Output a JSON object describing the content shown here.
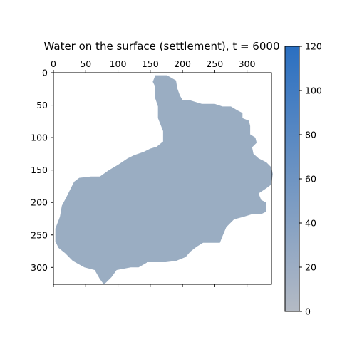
{
  "chart_data": {
    "type": "heatmap",
    "title": "Water on the surface (settlement), t = 6000",
    "xlabel": "",
    "ylabel": "",
    "x_axis_position": "top",
    "y_inverted": true,
    "xlim": [
      0,
      338
    ],
    "ylim": [
      0,
      326
    ],
    "x_ticks": [
      0,
      50,
      100,
      150,
      200,
      250,
      300
    ],
    "y_ticks": [
      0,
      50,
      100,
      150,
      200,
      250,
      300
    ],
    "bottom_ticks_unlabeled": [
      0,
      50,
      100,
      150,
      200,
      250,
      300
    ],
    "grid": false,
    "mask_fill_color": "#9aadc2",
    "background_color": "#ffffff",
    "displayed_region_value": 30,
    "region_outline": [
      [
        158,
        4
      ],
      [
        176,
        4
      ],
      [
        190,
        12
      ],
      [
        192,
        24
      ],
      [
        196,
        35
      ],
      [
        200,
        42
      ],
      [
        210,
        42
      ],
      [
        230,
        48
      ],
      [
        250,
        48
      ],
      [
        262,
        52
      ],
      [
        275,
        52
      ],
      [
        285,
        58
      ],
      [
        293,
        62
      ],
      [
        293,
        70
      ],
      [
        303,
        74
      ],
      [
        305,
        82
      ],
      [
        305,
        95
      ],
      [
        313,
        100
      ],
      [
        315,
        108
      ],
      [
        308,
        115
      ],
      [
        310,
        125
      ],
      [
        318,
        132
      ],
      [
        330,
        138
      ],
      [
        338,
        146
      ],
      [
        340,
        156
      ],
      [
        338,
        172
      ],
      [
        330,
        178
      ],
      [
        318,
        186
      ],
      [
        322,
        196
      ],
      [
        330,
        200
      ],
      [
        330,
        214
      ],
      [
        322,
        218
      ],
      [
        308,
        218
      ],
      [
        295,
        222
      ],
      [
        280,
        226
      ],
      [
        268,
        238
      ],
      [
        262,
        252
      ],
      [
        258,
        262
      ],
      [
        250,
        262
      ],
      [
        232,
        262
      ],
      [
        222,
        268
      ],
      [
        212,
        276
      ],
      [
        205,
        284
      ],
      [
        190,
        290
      ],
      [
        174,
        292
      ],
      [
        160,
        292
      ],
      [
        146,
        292
      ],
      [
        132,
        300
      ],
      [
        120,
        300
      ],
      [
        98,
        304
      ],
      [
        90,
        315
      ],
      [
        82,
        323
      ],
      [
        78,
        326
      ],
      [
        72,
        318
      ],
      [
        64,
        304
      ],
      [
        48,
        300
      ],
      [
        30,
        290
      ],
      [
        18,
        278
      ],
      [
        8,
        270
      ],
      [
        3,
        260
      ],
      [
        3,
        240
      ],
      [
        10,
        222
      ],
      [
        13,
        205
      ],
      [
        20,
        192
      ],
      [
        27,
        178
      ],
      [
        32,
        168
      ],
      [
        40,
        162
      ],
      [
        58,
        160
      ],
      [
        72,
        160
      ],
      [
        86,
        150
      ],
      [
        100,
        142
      ],
      [
        115,
        132
      ],
      [
        125,
        127
      ],
      [
        140,
        122
      ],
      [
        150,
        117
      ],
      [
        160,
        114
      ],
      [
        170,
        106
      ],
      [
        170,
        90
      ],
      [
        162,
        70
      ],
      [
        162,
        52
      ],
      [
        158,
        40
      ],
      [
        158,
        22
      ],
      [
        154,
        14
      ],
      [
        158,
        4
      ]
    ],
    "colorbar": {
      "min": 0,
      "max": 120,
      "ticks": [
        0,
        20,
        40,
        60,
        80,
        100,
        120
      ],
      "color_low": "#b4bac4",
      "color_high": "#2a6fc1"
    }
  }
}
